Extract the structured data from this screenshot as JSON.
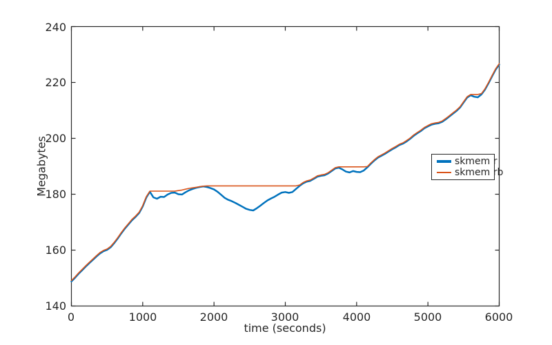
{
  "chart_data": {
    "type": "line",
    "title": "",
    "xlabel": "time (seconds)",
    "ylabel": "Megabytes",
    "xlim": [
      0,
      6000
    ],
    "ylim": [
      140,
      240
    ],
    "xticks": [
      0,
      1000,
      2000,
      3000,
      4000,
      5000,
      6000
    ],
    "yticks": [
      140,
      160,
      180,
      200,
      220,
      240
    ],
    "grid": false,
    "box": true,
    "tick_direction": "in",
    "legend_position": "inside-middle-right",
    "background_color": "#ffffff",
    "axis_color": "#262626",
    "x": [
      0,
      50,
      100,
      150,
      200,
      250,
      300,
      350,
      400,
      450,
      500,
      550,
      600,
      650,
      700,
      750,
      800,
      850,
      900,
      950,
      1000,
      1050,
      1100,
      1150,
      1200,
      1250,
      1300,
      1350,
      1400,
      1450,
      1500,
      1550,
      1600,
      1650,
      1700,
      1750,
      1800,
      1850,
      1900,
      1950,
      2000,
      2050,
      2100,
      2150,
      2200,
      2250,
      2300,
      2350,
      2400,
      2450,
      2500,
      2550,
      2600,
      2650,
      2700,
      2750,
      2800,
      2850,
      2900,
      2950,
      3000,
      3050,
      3100,
      3150,
      3200,
      3250,
      3300,
      3350,
      3400,
      3450,
      3500,
      3550,
      3600,
      3650,
      3700,
      3750,
      3800,
      3850,
      3900,
      3950,
      4000,
      4050,
      4100,
      4150,
      4200,
      4250,
      4300,
      4350,
      4400,
      4450,
      4500,
      4550,
      4600,
      4650,
      4700,
      4750,
      4800,
      4850,
      4900,
      4950,
      5000,
      5050,
      5100,
      5150,
      5200,
      5250,
      5300,
      5350,
      5400,
      5450,
      5500,
      5550,
      5600,
      5650,
      5700,
      5750,
      5800,
      5850,
      5900,
      5950,
      6000
    ],
    "series": [
      {
        "name": "skmem r",
        "color": "#0072bd",
        "line_width": 2.5,
        "values": [
          148.8,
          150.1,
          151.5,
          152.8,
          154.1,
          155.3,
          156.5,
          157.7,
          158.8,
          159.6,
          160.1,
          161.0,
          162.5,
          164.2,
          166.0,
          167.7,
          169.2,
          170.7,
          171.9,
          173.3,
          175.6,
          178.8,
          180.9,
          178.9,
          178.4,
          179.1,
          179.0,
          179.9,
          180.5,
          180.6,
          180.0,
          179.9,
          180.7,
          181.4,
          181.9,
          182.3,
          182.6,
          182.8,
          182.6,
          182.2,
          181.7,
          180.9,
          179.8,
          178.7,
          178.0,
          177.5,
          176.9,
          176.2,
          175.5,
          174.8,
          174.4,
          174.2,
          175.0,
          175.9,
          176.9,
          177.8,
          178.5,
          179.1,
          179.9,
          180.6,
          180.8,
          180.5,
          180.8,
          181.9,
          183.0,
          183.9,
          184.5,
          184.8,
          185.5,
          186.3,
          186.6,
          186.8,
          187.4,
          188.3,
          189.2,
          189.5,
          188.9,
          188.1,
          187.8,
          188.3,
          188.0,
          187.9,
          188.5,
          189.6,
          190.9,
          192.1,
          193.1,
          193.8,
          194.5,
          195.3,
          196.1,
          196.8,
          197.6,
          198.1,
          198.9,
          199.8,
          200.9,
          201.8,
          202.6,
          203.6,
          204.3,
          204.9,
          205.2,
          205.4,
          205.9,
          206.8,
          207.8,
          208.8,
          209.8,
          211.0,
          212.8,
          214.6,
          215.4,
          214.9,
          214.7,
          215.7,
          217.4,
          219.7,
          222.2,
          224.6,
          226.4
        ]
      },
      {
        "name": "skmem rb",
        "color": "#d95319",
        "line_width": 1.6,
        "values": [
          149.1,
          150.4,
          151.8,
          153.1,
          154.4,
          155.6,
          156.8,
          158.0,
          159.1,
          159.9,
          160.4,
          161.3,
          162.8,
          164.5,
          166.3,
          168.0,
          169.5,
          171.0,
          172.2,
          173.6,
          175.9,
          179.1,
          181.1,
          181.1,
          181.1,
          181.1,
          181.1,
          181.1,
          181.1,
          181.1,
          181.3,
          181.5,
          181.8,
          182.1,
          182.3,
          182.5,
          182.7,
          182.9,
          183.0,
          183.0,
          183.0,
          183.0,
          183.0,
          183.0,
          183.0,
          183.0,
          183.0,
          183.0,
          183.0,
          183.0,
          183.0,
          183.0,
          183.0,
          183.0,
          183.0,
          183.0,
          183.0,
          183.0,
          183.0,
          183.0,
          183.0,
          183.0,
          183.0,
          183.0,
          183.3,
          184.2,
          184.8,
          185.1,
          185.8,
          186.6,
          186.9,
          187.1,
          187.7,
          188.6,
          189.5,
          189.8,
          189.8,
          189.8,
          189.8,
          189.8,
          189.8,
          189.8,
          189.8,
          189.9,
          191.2,
          192.4,
          193.4,
          194.1,
          194.8,
          195.6,
          196.4,
          197.1,
          197.9,
          198.4,
          199.2,
          200.1,
          201.2,
          202.1,
          202.9,
          203.9,
          204.6,
          205.2,
          205.5,
          205.7,
          206.2,
          207.1,
          208.1,
          209.1,
          210.1,
          211.3,
          213.1,
          214.9,
          215.7,
          215.7,
          215.7,
          216.0,
          217.7,
          220.0,
          222.5,
          224.9,
          226.7
        ]
      }
    ]
  }
}
